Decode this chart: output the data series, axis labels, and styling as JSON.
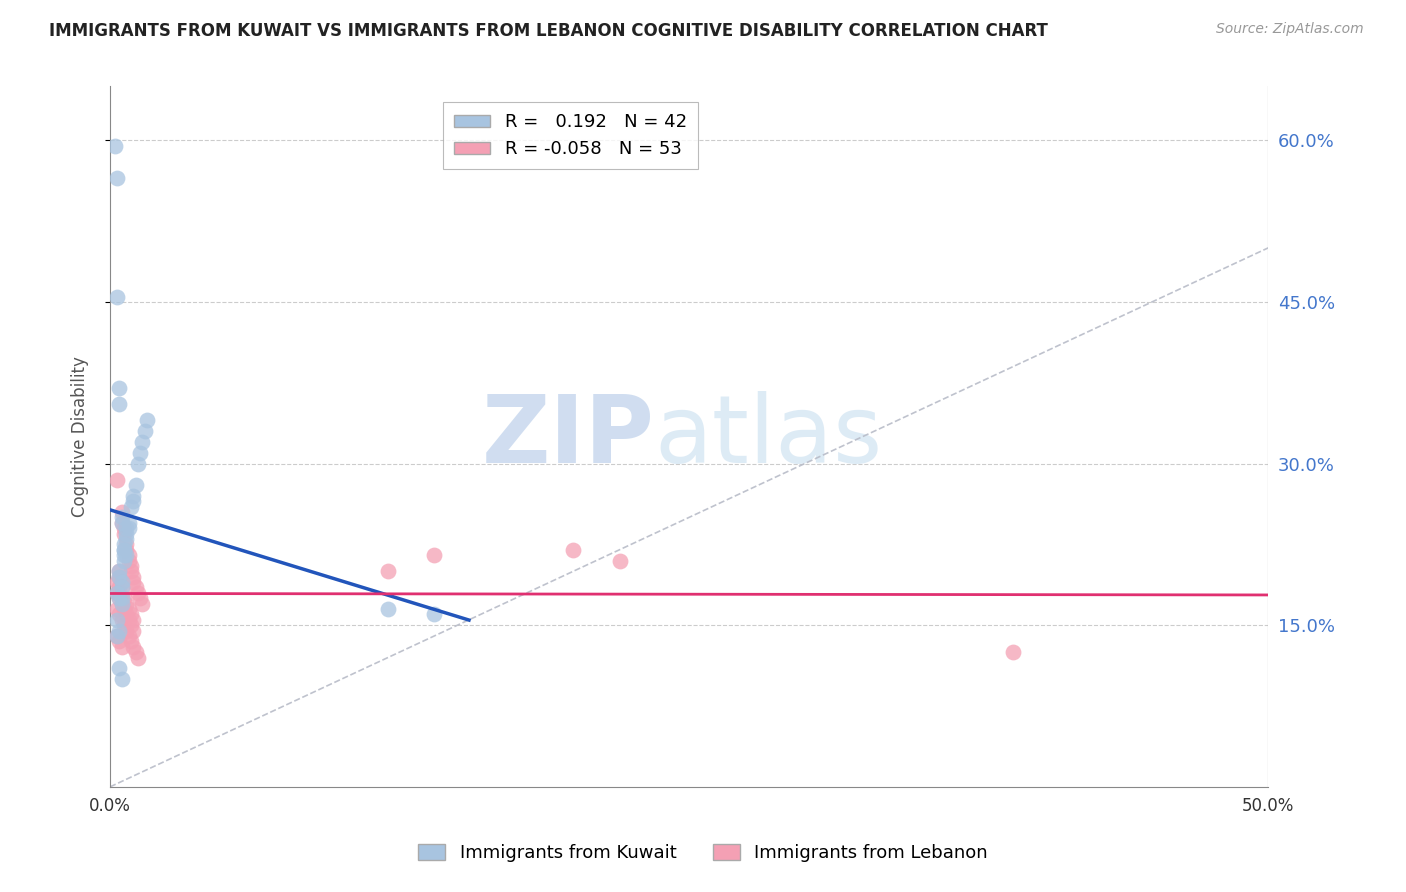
{
  "title": "IMMIGRANTS FROM KUWAIT VS IMMIGRANTS FROM LEBANON COGNITIVE DISABILITY CORRELATION CHART",
  "source": "Source: ZipAtlas.com",
  "ylabel": "Cognitive Disability",
  "xlim": [
    0.0,
    0.5
  ],
  "ylim": [
    0.0,
    0.65
  ],
  "yticks": [
    0.15,
    0.3,
    0.45,
    0.6
  ],
  "ytick_labels": [
    "15.0%",
    "30.0%",
    "45.0%",
    "60.0%"
  ],
  "xticks": [
    0.0,
    0.1,
    0.2,
    0.3,
    0.4,
    0.5
  ],
  "xtick_labels": [
    "0.0%",
    "",
    "",
    "",
    "",
    "50.0%"
  ],
  "kuwait_R": 0.192,
  "kuwait_N": 42,
  "lebanon_R": -0.058,
  "lebanon_N": 53,
  "kuwait_color": "#a8c4e0",
  "lebanon_color": "#f4a0b4",
  "kuwait_line_color": "#2255bb",
  "lebanon_line_color": "#e03070",
  "diagonal_color": "#b8bcc8",
  "watermark_zip": "ZIP",
  "watermark_atlas": "atlas",
  "kuwait_x": [
    0.002,
    0.003,
    0.004,
    0.004,
    0.005,
    0.005,
    0.005,
    0.006,
    0.006,
    0.006,
    0.007,
    0.007,
    0.007,
    0.008,
    0.008,
    0.009,
    0.01,
    0.01,
    0.011,
    0.012,
    0.013,
    0.014,
    0.015,
    0.016,
    0.003,
    0.004,
    0.004,
    0.005,
    0.005,
    0.006,
    0.006,
    0.007,
    0.003,
    0.004,
    0.005,
    0.003,
    0.004,
    0.12,
    0.14,
    0.003,
    0.004,
    0.005
  ],
  "kuwait_y": [
    0.595,
    0.565,
    0.2,
    0.195,
    0.19,
    0.185,
    0.175,
    0.22,
    0.215,
    0.21,
    0.24,
    0.235,
    0.23,
    0.245,
    0.24,
    0.26,
    0.27,
    0.265,
    0.28,
    0.3,
    0.31,
    0.32,
    0.33,
    0.34,
    0.455,
    0.37,
    0.355,
    0.25,
    0.245,
    0.225,
    0.22,
    0.215,
    0.18,
    0.175,
    0.17,
    0.155,
    0.145,
    0.165,
    0.16,
    0.14,
    0.11,
    0.1
  ],
  "lebanon_x": [
    0.003,
    0.004,
    0.004,
    0.005,
    0.005,
    0.006,
    0.006,
    0.007,
    0.007,
    0.008,
    0.008,
    0.009,
    0.009,
    0.01,
    0.01,
    0.011,
    0.012,
    0.013,
    0.014,
    0.003,
    0.004,
    0.005,
    0.006,
    0.007,
    0.008,
    0.009,
    0.01,
    0.003,
    0.004,
    0.005,
    0.006,
    0.007,
    0.008,
    0.009,
    0.01,
    0.12,
    0.14,
    0.2,
    0.22,
    0.003,
    0.004,
    0.005,
    0.006,
    0.007,
    0.008,
    0.009,
    0.01,
    0.011,
    0.012,
    0.003,
    0.004,
    0.39,
    0.005
  ],
  "lebanon_y": [
    0.285,
    0.2,
    0.195,
    0.255,
    0.245,
    0.24,
    0.235,
    0.225,
    0.22,
    0.215,
    0.21,
    0.205,
    0.2,
    0.195,
    0.19,
    0.185,
    0.18,
    0.175,
    0.17,
    0.18,
    0.175,
    0.17,
    0.165,
    0.16,
    0.155,
    0.15,
    0.145,
    0.19,
    0.185,
    0.18,
    0.175,
    0.17,
    0.165,
    0.16,
    0.155,
    0.2,
    0.215,
    0.22,
    0.21,
    0.165,
    0.16,
    0.155,
    0.15,
    0.145,
    0.14,
    0.135,
    0.13,
    0.125,
    0.12,
    0.14,
    0.135,
    0.125,
    0.13
  ]
}
